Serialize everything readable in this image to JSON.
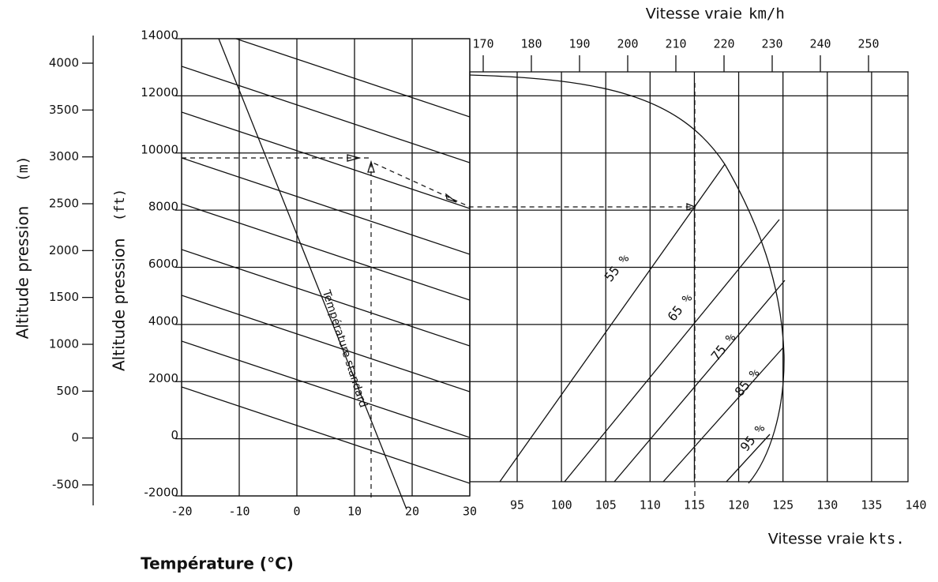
{
  "axes": {
    "temperature": {
      "title": "Température (°C)",
      "ticks": [
        -20,
        -10,
        0,
        10,
        20,
        30
      ]
    },
    "altitude_ft": {
      "title": "Altitude pression",
      "unit": "(ft)",
      "ticks": [
        14000,
        12000,
        10000,
        8000,
        6000,
        4000,
        2000,
        0,
        -2000
      ]
    },
    "altitude_m": {
      "title": "Altitude pression",
      "unit": "(m)",
      "ticks": [
        4000,
        3500,
        3000,
        2500,
        2000,
        1500,
        1000,
        500,
        0,
        -500
      ]
    },
    "speed_kmh": {
      "title": "Vitesse vraie",
      "unit": "km/h",
      "ticks": [
        170,
        180,
        190,
        200,
        210,
        220,
        230,
        240,
        250
      ]
    },
    "speed_kts": {
      "title": "Vitesse vraie",
      "unit": "kts.",
      "ticks": [
        95,
        100,
        105,
        110,
        115,
        120,
        125,
        130,
        135,
        140
      ]
    }
  },
  "curves": {
    "standard_temperature": "Température standard",
    "power_settings": [
      "55 %",
      "65 %",
      "75 %",
      "85 %",
      "95 %"
    ]
  }
}
